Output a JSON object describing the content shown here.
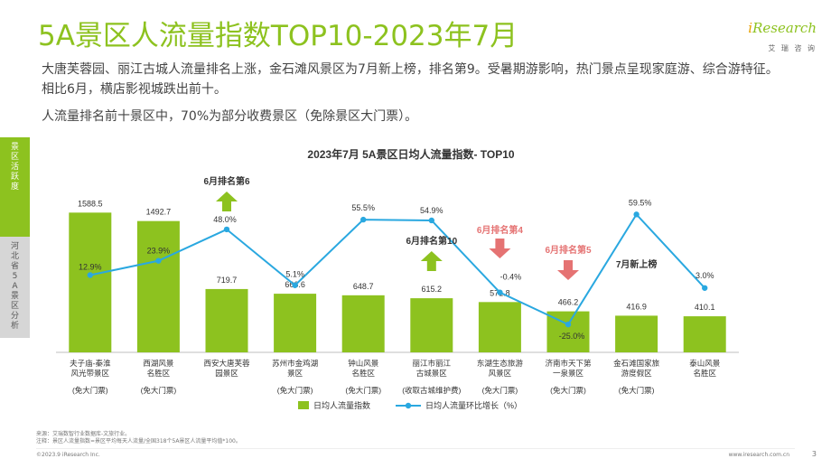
{
  "header": {
    "title": "5A景区人流量指数TOP10-2023年7月",
    "logo_text": "iResearch",
    "logo_sub": "艾 瑞 咨 询"
  },
  "summary": {
    "line1": "大唐芙蓉园、丽江古城人流量排名上涨，金石滩风景区为7月新上榜，排名第9。受暑期游影响，热门景点呈现家庭游、综合游特征。相比6月，横店影视城跌出前十。",
    "line2": "人流量排名前十景区中，70%为部分收费景区（免除景区大门票）。"
  },
  "side_tabs": {
    "active": "景区活跃度",
    "inactive": "河北省5A景区分析"
  },
  "footer": {
    "source": "来源：艾瑞数智行业数据库-文旅行业。",
    "note": "注释：景区人流量指数=景区平均每天人流量/全国318个5A景区人流量平均值*100。",
    "copyright": "©2023.9 iResearch Inc.",
    "site": "www.iresearch.com.cn",
    "page": "3"
  },
  "colors": {
    "accent": "#8dc21f",
    "bar": "#8dc21f",
    "line": "#2aa8e0",
    "up_arrow": "#8dc21f",
    "down_arrow": "#e57373",
    "down_text": "#e57373"
  },
  "chart_data": {
    "type": "bar",
    "title": "2023年7月 5A景区日均人流量指数- TOP10",
    "categories": [
      [
        "夫子庙-秦淮",
        "风光带景区"
      ],
      [
        "西湖风景",
        "名胜区"
      ],
      [
        "西安大唐芙蓉",
        "园景区"
      ],
      [
        "苏州市金鸡湖",
        "景区"
      ],
      [
        "钟山风景",
        "名胜区"
      ],
      [
        "丽江市丽江",
        "古城景区"
      ],
      [
        "东湖生态旅游",
        "风景区"
      ],
      [
        "济南市天下第",
        "一泉景区"
      ],
      [
        "金石滩国家旅",
        "游度假区"
      ],
      [
        "泰山风景",
        "名胜区"
      ]
    ],
    "ticket_notes": [
      "(免大门票)",
      "(免大门票)",
      "",
      "(免大门票)",
      "(免大门票)",
      "(收取古城维护费)",
      "(免大门票)",
      "(免大门票)",
      "(免大门票)",
      ""
    ],
    "series": [
      {
        "name": "日均人流量指数",
        "type": "bar",
        "values": [
          1588.5,
          1492.7,
          719.7,
          666.6,
          648.7,
          615.2,
          571.8,
          466.2,
          416.9,
          410.1
        ],
        "labels": [
          "1588.5",
          "1492.7",
          "719.7",
          "666.6",
          "648.7",
          "615.2",
          "571.8",
          "466.2",
          "416.9",
          "410.1"
        ]
      },
      {
        "name": "日均人流量环比增长（%）",
        "type": "line",
        "values": [
          12.9,
          23.9,
          48.0,
          5.1,
          55.5,
          54.9,
          -0.4,
          -25.0,
          59.5,
          3.0
        ],
        "labels": [
          "12.9%",
          "23.9%",
          "48.0%",
          "5.1%",
          "55.5%",
          "54.9%",
          "-0.4%",
          "-25.0%",
          "59.5%",
          "3.0%"
        ]
      }
    ],
    "bar_ylim": [
      0,
      1900
    ],
    "line_ylim": [
      -27,
      75
    ],
    "annotations": [
      {
        "category_index": 2,
        "text": "6月排名第6",
        "arrow": "up"
      },
      {
        "category_index": 5,
        "text": "6月排名第10",
        "arrow": "up"
      },
      {
        "category_index": 6,
        "text": "6月排名第4",
        "arrow": "down"
      },
      {
        "category_index": 7,
        "text": "6月排名第5",
        "arrow": "down"
      },
      {
        "category_index": 8,
        "text": "7月新上榜",
        "arrow": "none"
      }
    ],
    "legend_position": "bottom",
    "grid": false
  }
}
